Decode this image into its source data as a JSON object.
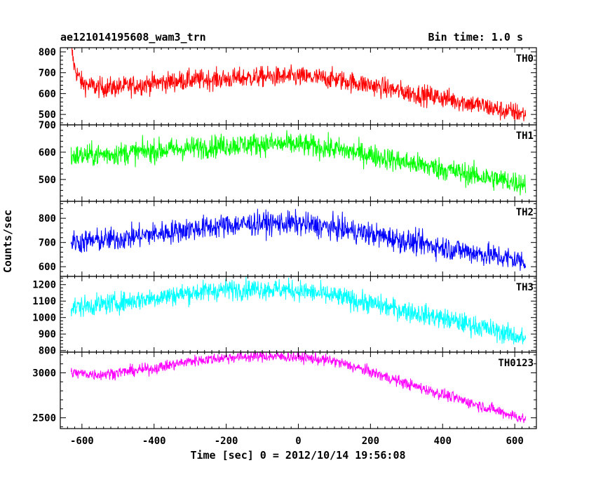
{
  "header": {
    "title": "ae121014195608_wam3_trn",
    "bin_time": "Bin time: 1.0 s"
  },
  "chart_data": {
    "type": "line",
    "ylabel": "Counts/sec",
    "xlabel": "Time [sec] 0 = 2012/10/14 19:56:08",
    "xlim": [
      -660,
      660
    ],
    "xticks": [
      -600,
      -400,
      -200,
      0,
      200,
      400,
      600
    ],
    "panels": [
      {
        "name": "TH0",
        "color": "#ff0000",
        "ylim": [
          450,
          820
        ],
        "yticks": [
          500,
          600,
          700,
          800
        ],
        "x": [
          -630,
          -620,
          -600,
          -560,
          -500,
          -400,
          -300,
          -200,
          -100,
          0,
          100,
          200,
          300,
          400,
          500,
          560,
          620,
          630
        ],
        "y": [
          820,
          720,
          650,
          630,
          630,
          650,
          665,
          670,
          680,
          680,
          670,
          640,
          605,
          580,
          545,
          520,
          505,
          500
        ],
        "noise": 35
      },
      {
        "name": "TH1",
        "color": "#00ff00",
        "ylim": [
          420,
          700
        ],
        "yticks": [
          500,
          600,
          700
        ],
        "x": [
          -630,
          -500,
          -400,
          -300,
          -200,
          -100,
          0,
          100,
          200,
          300,
          400,
          500,
          600,
          630
        ],
        "y": [
          585,
          595,
          605,
          615,
          625,
          630,
          628,
          612,
          590,
          562,
          538,
          512,
          490,
          485
        ],
        "noise": 30
      },
      {
        "name": "TH2",
        "color": "#0000ff",
        "ylim": [
          560,
          870
        ],
        "yticks": [
          600,
          700,
          800
        ],
        "x": [
          -630,
          -500,
          -400,
          -300,
          -200,
          -100,
          0,
          100,
          200,
          300,
          400,
          500,
          600,
          630
        ],
        "y": [
          700,
          715,
          735,
          755,
          770,
          780,
          778,
          760,
          735,
          705,
          680,
          655,
          630,
          620
        ],
        "noise": 35
      },
      {
        "name": "TH3",
        "color": "#00ffff",
        "ylim": [
          790,
          1250
        ],
        "yticks": [
          800,
          900,
          1000,
          1100,
          1200
        ],
        "x": [
          -630,
          -500,
          -400,
          -300,
          -200,
          -100,
          0,
          100,
          200,
          300,
          400,
          500,
          600,
          630
        ],
        "y": [
          1060,
          1090,
          1120,
          1150,
          1170,
          1175,
          1165,
          1130,
          1085,
          1040,
          995,
          945,
          890,
          870
        ],
        "noise": 45
      },
      {
        "name": "TH0123",
        "color": "#ff00ff",
        "ylim": [
          2380,
          3230
        ],
        "yticks": [
          2500,
          3000
        ],
        "x": [
          -630,
          -550,
          -400,
          -300,
          -200,
          -100,
          0,
          100,
          200,
          300,
          400,
          500,
          600,
          630
        ],
        "y": [
          3000,
          2980,
          3050,
          3130,
          3170,
          3185,
          3175,
          3130,
          3010,
          2880,
          2760,
          2640,
          2520,
          2480
        ],
        "noise": 45
      }
    ]
  }
}
